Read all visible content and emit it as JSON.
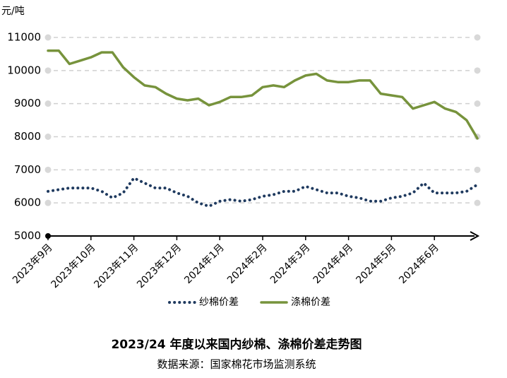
{
  "chart_data": {
    "type": "line",
    "title": "2023/24 年度以来国内纱棉、涤棉价差走势图",
    "subtitle": "数据来源：国家棉花市场监测系统",
    "y_axis_label": "元/吨",
    "categories": [
      "2023年9月",
      null,
      null,
      null,
      "2023年10月",
      null,
      null,
      null,
      "2023年11月",
      null,
      null,
      null,
      "2023年12月",
      null,
      null,
      null,
      "2024年1月",
      null,
      null,
      null,
      "2024年2月",
      null,
      null,
      null,
      "2024年3月",
      null,
      null,
      null,
      "2024年4月",
      null,
      null,
      null,
      "2024年5月",
      null,
      null,
      null,
      "2024年6月",
      null,
      null,
      null,
      null
    ],
    "series": [
      {
        "name": "纱棉价差",
        "color": "#1f3a5f",
        "style": "dotted",
        "values": [
          6350,
          6400,
          6450,
          6450,
          6450,
          6350,
          6150,
          6300,
          6750,
          6600,
          6450,
          6450,
          6300,
          6200,
          6000,
          5900,
          6050,
          6100,
          6050,
          6100,
          6200,
          6250,
          6350,
          6350,
          6500,
          6400,
          6300,
          6300,
          6200,
          6150,
          6050,
          6050,
          6150,
          6200,
          6300,
          6600,
          6300,
          6300,
          6300,
          6350,
          6550
        ]
      },
      {
        "name": "涤棉价差",
        "color": "#77933c",
        "style": "solid",
        "values": [
          10600,
          10600,
          10200,
          10300,
          10400,
          10550,
          10550,
          10100,
          9800,
          9550,
          9500,
          9300,
          9150,
          9100,
          9150,
          8950,
          9050,
          9200,
          9200,
          9250,
          9500,
          9550,
          9500,
          9700,
          9850,
          9900,
          9700,
          9650,
          9650,
          9700,
          9700,
          9300,
          9250,
          9200,
          8850,
          8950,
          9050,
          8850,
          8750,
          8500,
          7950
        ]
      }
    ],
    "ylim": [
      5000,
      11000
    ],
    "yticks": [
      5000,
      6000,
      7000,
      8000,
      9000,
      10000,
      11000
    ],
    "grid": true,
    "legend": "bottom"
  }
}
